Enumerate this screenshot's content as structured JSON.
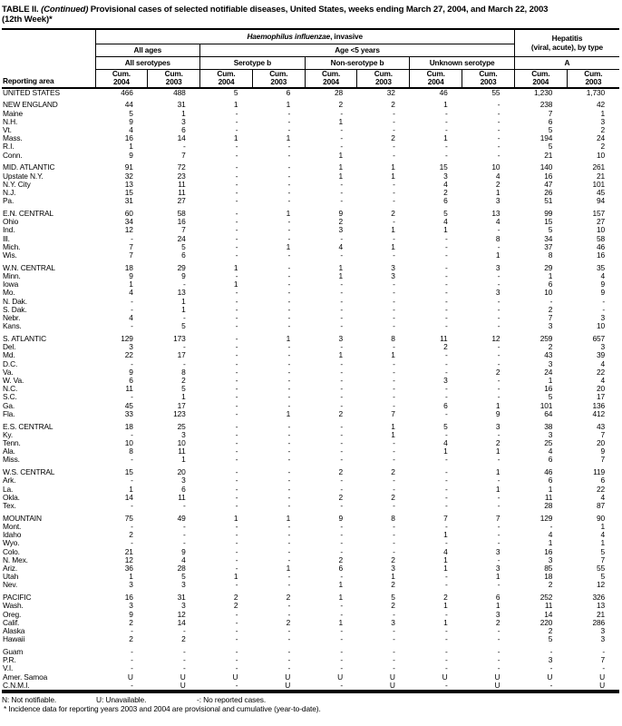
{
  "title": {
    "prefix": "TABLE II.",
    "continued": "(Continued)",
    "rest": "Provisional cases of selected notifiable diseases, United States, weeks ending March 27, 2004, and March 22, 2003",
    "week": "(12th Week)*"
  },
  "table": {
    "reporting_area_label": "Reporting area",
    "col_groups": {
      "hinfluenzae_italic": "Haemophilus influenzae",
      "hinfluenzae_rest": ", invasive",
      "hepatitis_line1": "Hepatitis",
      "hepatitis_line2": "(viral, acute), by type",
      "all_ages": "All ages",
      "age_under_5": "Age <5 years",
      "all_serotypes": "All serotypes",
      "serotype_b": "Serotype b",
      "non_serotype_b": "Non-serotype b",
      "unknown_serotype": "Unknown serotype",
      "type_a": "A"
    },
    "cum_label": "Cum.",
    "years": [
      "2004",
      "2003"
    ],
    "groups": [
      {
        "rows": [
          [
            "UNITED STATES",
            "466",
            "488",
            "5",
            "6",
            "28",
            "32",
            "46",
            "55",
            "1,230",
            "1,730"
          ]
        ]
      },
      {
        "rows": [
          [
            "NEW ENGLAND",
            "44",
            "31",
            "1",
            "1",
            "2",
            "2",
            "1",
            "-",
            "238",
            "42"
          ],
          [
            "Maine",
            "5",
            "1",
            "-",
            "-",
            "-",
            "-",
            "-",
            "-",
            "7",
            "1"
          ],
          [
            "N.H.",
            "9",
            "3",
            "-",
            "-",
            "1",
            "-",
            "-",
            "-",
            "6",
            "3"
          ],
          [
            "Vt.",
            "4",
            "6",
            "-",
            "-",
            "-",
            "-",
            "-",
            "-",
            "5",
            "2"
          ],
          [
            "Mass.",
            "16",
            "14",
            "1",
            "1",
            "-",
            "2",
            "1",
            "-",
            "194",
            "24"
          ],
          [
            "R.I.",
            "1",
            "-",
            "-",
            "-",
            "-",
            "-",
            "-",
            "-",
            "5",
            "2"
          ],
          [
            "Conn.",
            "9",
            "7",
            "-",
            "-",
            "1",
            "-",
            "-",
            "-",
            "21",
            "10"
          ]
        ]
      },
      {
        "rows": [
          [
            "MID. ATLANTIC",
            "91",
            "72",
            "-",
            "-",
            "1",
            "1",
            "15",
            "10",
            "140",
            "261"
          ],
          [
            "Upstate N.Y.",
            "32",
            "23",
            "-",
            "-",
            "1",
            "1",
            "3",
            "4",
            "16",
            "21"
          ],
          [
            "N.Y. City",
            "13",
            "11",
            "-",
            "-",
            "-",
            "-",
            "4",
            "2",
            "47",
            "101"
          ],
          [
            "N.J.",
            "15",
            "11",
            "-",
            "-",
            "-",
            "-",
            "2",
            "1",
            "26",
            "45"
          ],
          [
            "Pa.",
            "31",
            "27",
            "-",
            "-",
            "-",
            "-",
            "6",
            "3",
            "51",
            "94"
          ]
        ]
      },
      {
        "rows": [
          [
            "E.N. CENTRAL",
            "60",
            "58",
            "-",
            "1",
            "9",
            "2",
            "5",
            "13",
            "99",
            "157"
          ],
          [
            "Ohio",
            "34",
            "16",
            "-",
            "-",
            "2",
            "-",
            "4",
            "4",
            "15",
            "27"
          ],
          [
            "Ind.",
            "12",
            "7",
            "-",
            "-",
            "3",
            "1",
            "1",
            "-",
            "5",
            "10"
          ],
          [
            "Ill.",
            "-",
            "24",
            "-",
            "-",
            "-",
            "-",
            "-",
            "8",
            "34",
            "58"
          ],
          [
            "Mich.",
            "7",
            "5",
            "-",
            "1",
            "4",
            "1",
            "-",
            "-",
            "37",
            "46"
          ],
          [
            "Wis.",
            "7",
            "6",
            "-",
            "-",
            "-",
            "-",
            "-",
            "1",
            "8",
            "16"
          ]
        ]
      },
      {
        "rows": [
          [
            "W.N. CENTRAL",
            "18",
            "29",
            "1",
            "-",
            "1",
            "3",
            "-",
            "3",
            "29",
            "35"
          ],
          [
            "Minn.",
            "9",
            "9",
            "-",
            "-",
            "1",
            "3",
            "-",
            "-",
            "1",
            "4"
          ],
          [
            "Iowa",
            "1",
            "-",
            "1",
            "-",
            "-",
            "-",
            "-",
            "-",
            "6",
            "9"
          ],
          [
            "Mo.",
            "4",
            "13",
            "-",
            "-",
            "-",
            "-",
            "-",
            "3",
            "10",
            "9"
          ],
          [
            "N. Dak.",
            "-",
            "1",
            "-",
            "-",
            "-",
            "-",
            "-",
            "-",
            "-",
            "-"
          ],
          [
            "S. Dak.",
            "-",
            "1",
            "-",
            "-",
            "-",
            "-",
            "-",
            "-",
            "2",
            "-"
          ],
          [
            "Nebr.",
            "4",
            "-",
            "-",
            "-",
            "-",
            "-",
            "-",
            "-",
            "7",
            "3"
          ],
          [
            "Kans.",
            "-",
            "5",
            "-",
            "-",
            "-",
            "-",
            "-",
            "-",
            "3",
            "10"
          ]
        ]
      },
      {
        "rows": [
          [
            "S. ATLANTIC",
            "129",
            "173",
            "-",
            "1",
            "3",
            "8",
            "11",
            "12",
            "259",
            "657"
          ],
          [
            "Del.",
            "3",
            "-",
            "-",
            "-",
            "-",
            "-",
            "2",
            "-",
            "2",
            "3"
          ],
          [
            "Md.",
            "22",
            "17",
            "-",
            "-",
            "1",
            "1",
            "-",
            "-",
            "43",
            "39"
          ],
          [
            "D.C.",
            "-",
            "-",
            "-",
            "-",
            "-",
            "-",
            "-",
            "-",
            "3",
            "4"
          ],
          [
            "Va.",
            "9",
            "8",
            "-",
            "-",
            "-",
            "-",
            "-",
            "2",
            "24",
            "22"
          ],
          [
            "W. Va.",
            "6",
            "2",
            "-",
            "-",
            "-",
            "-",
            "3",
            "-",
            "1",
            "4"
          ],
          [
            "N.C.",
            "11",
            "5",
            "-",
            "-",
            "-",
            "-",
            "-",
            "-",
            "16",
            "20"
          ],
          [
            "S.C.",
            "-",
            "1",
            "-",
            "-",
            "-",
            "-",
            "-",
            "-",
            "5",
            "17"
          ],
          [
            "Ga.",
            "45",
            "17",
            "-",
            "-",
            "-",
            "-",
            "6",
            "1",
            "101",
            "136"
          ],
          [
            "Fla.",
            "33",
            "123",
            "-",
            "1",
            "2",
            "7",
            "-",
            "9",
            "64",
            "412"
          ]
        ]
      },
      {
        "rows": [
          [
            "E.S. CENTRAL",
            "18",
            "25",
            "-",
            "-",
            "-",
            "1",
            "5",
            "3",
            "38",
            "43"
          ],
          [
            "Ky.",
            "-",
            "3",
            "-",
            "-",
            "-",
            "1",
            "-",
            "-",
            "3",
            "7"
          ],
          [
            "Tenn.",
            "10",
            "10",
            "-",
            "-",
            "-",
            "-",
            "4",
            "2",
            "25",
            "20"
          ],
          [
            "Ala.",
            "8",
            "11",
            "-",
            "-",
            "-",
            "-",
            "1",
            "1",
            "4",
            "9"
          ],
          [
            "Miss.",
            "-",
            "1",
            "-",
            "-",
            "-",
            "-",
            "-",
            "-",
            "6",
            "7"
          ]
        ]
      },
      {
        "rows": [
          [
            "W.S. CENTRAL",
            "15",
            "20",
            "-",
            "-",
            "2",
            "2",
            "-",
            "1",
            "46",
            "119"
          ],
          [
            "Ark.",
            "-",
            "3",
            "-",
            "-",
            "-",
            "-",
            "-",
            "-",
            "6",
            "6"
          ],
          [
            "La.",
            "1",
            "6",
            "-",
            "-",
            "-",
            "-",
            "-",
            "1",
            "1",
            "22"
          ],
          [
            "Okla.",
            "14",
            "11",
            "-",
            "-",
            "2",
            "2",
            "-",
            "-",
            "11",
            "4"
          ],
          [
            "Tex.",
            "-",
            "-",
            "-",
            "-",
            "-",
            "-",
            "-",
            "-",
            "28",
            "87"
          ]
        ]
      },
      {
        "rows": [
          [
            "MOUNTAIN",
            "75",
            "49",
            "1",
            "1",
            "9",
            "8",
            "7",
            "7",
            "129",
            "90"
          ],
          [
            "Mont.",
            "-",
            "-",
            "-",
            "-",
            "-",
            "-",
            "-",
            "-",
            "-",
            "1"
          ],
          [
            "Idaho",
            "2",
            "-",
            "-",
            "-",
            "-",
            "-",
            "1",
            "-",
            "4",
            "4"
          ],
          [
            "Wyo.",
            "-",
            "-",
            "-",
            "-",
            "-",
            "-",
            "-",
            "-",
            "1",
            "1"
          ],
          [
            "Colo.",
            "21",
            "9",
            "-",
            "-",
            "-",
            "-",
            "4",
            "3",
            "16",
            "5"
          ],
          [
            "N. Mex.",
            "12",
            "4",
            "-",
            "-",
            "2",
            "2",
            "1",
            "-",
            "3",
            "7"
          ],
          [
            "Ariz.",
            "36",
            "28",
            "-",
            "1",
            "6",
            "3",
            "1",
            "3",
            "85",
            "55"
          ],
          [
            "Utah",
            "1",
            "5",
            "1",
            "-",
            "-",
            "1",
            "-",
            "1",
            "18",
            "5"
          ],
          [
            "Nev.",
            "3",
            "3",
            "-",
            "-",
            "1",
            "2",
            "-",
            "-",
            "2",
            "12"
          ]
        ]
      },
      {
        "rows": [
          [
            "PACIFIC",
            "16",
            "31",
            "2",
            "2",
            "1",
            "5",
            "2",
            "6",
            "252",
            "326"
          ],
          [
            "Wash.",
            "3",
            "3",
            "2",
            "-",
            "-",
            "2",
            "1",
            "1",
            "11",
            "13"
          ],
          [
            "Oreg.",
            "9",
            "12",
            "-",
            "-",
            "-",
            "-",
            "-",
            "3",
            "14",
            "21"
          ],
          [
            "Calif.",
            "2",
            "14",
            "-",
            "2",
            "1",
            "3",
            "1",
            "2",
            "220",
            "286"
          ],
          [
            "Alaska",
            "-",
            "-",
            "-",
            "-",
            "-",
            "-",
            "-",
            "-",
            "2",
            "3"
          ],
          [
            "Hawaii",
            "2",
            "2",
            "-",
            "-",
            "-",
            "-",
            "-",
            "-",
            "5",
            "3"
          ]
        ]
      },
      {
        "rows": [
          [
            "Guam",
            "-",
            "-",
            "-",
            "-",
            "-",
            "-",
            "-",
            "-",
            "-",
            "-"
          ],
          [
            "P.R.",
            "-",
            "-",
            "-",
            "-",
            "-",
            "-",
            "-",
            "-",
            "3",
            "7"
          ],
          [
            "V.I.",
            "-",
            "-",
            "-",
            "-",
            "-",
            "-",
            "-",
            "-",
            "-",
            "-"
          ],
          [
            "Amer. Samoa",
            "U",
            "U",
            "U",
            "U",
            "U",
            "U",
            "U",
            "U",
            "U",
            "U"
          ],
          [
            "C.N.M.I.",
            "-",
            "U",
            "-",
            "U",
            "-",
            "U",
            "-",
            "U",
            "-",
            "U"
          ]
        ]
      }
    ]
  },
  "footnotes": {
    "legend": [
      "N: Not notifiable.",
      "U: Unavailable.",
      "-: No reported cases."
    ],
    "asterisk": "* Incidence data for reporting years 2003 and 2004 are provisional and cumulative (year-to-date)."
  }
}
